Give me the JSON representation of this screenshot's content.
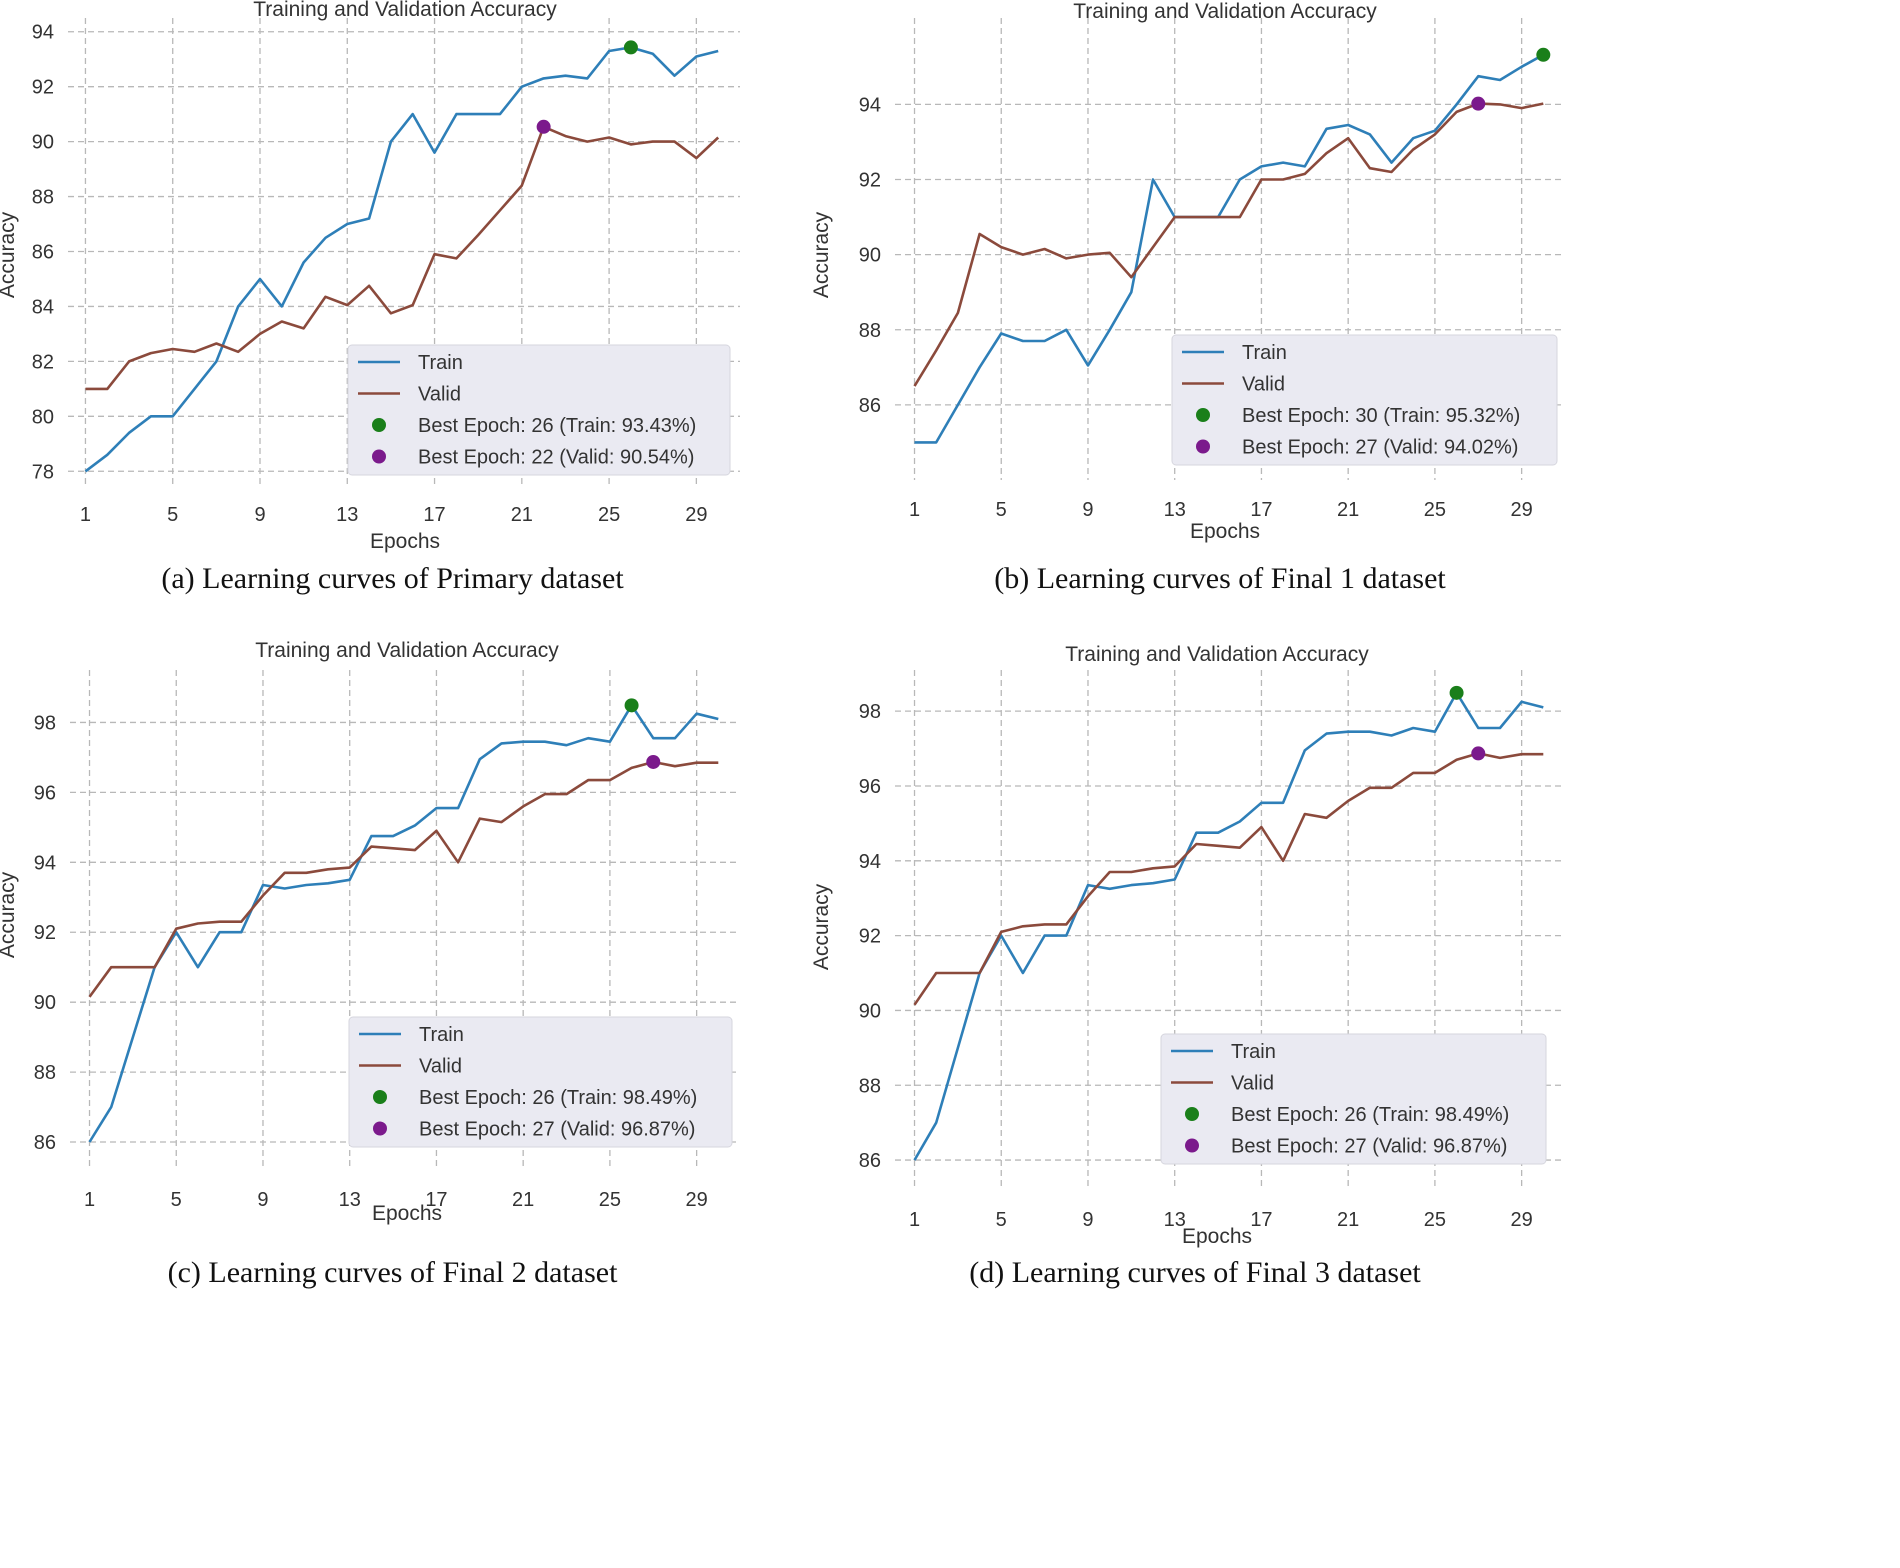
{
  "figure": {
    "captions": [
      "(a) Learning curves of Primary dataset",
      "(b) Learning curves of Final 1 dataset",
      "(c) Learning curves of Final 2 dataset",
      "(d) Learning curves of Final 3 dataset"
    ]
  },
  "colors": {
    "train": "#2e7fb8",
    "valid": "#8b4a3c",
    "best_train_marker": "#1a7f1a",
    "best_valid_marker": "#7b1a8c",
    "grid": "#b8b8b8",
    "legend_bg": "#eaeaf2"
  },
  "chart_data": [
    {
      "type": "line",
      "title": "Training and Validation Accuracy",
      "xlabel": "Epochs",
      "ylabel": "Accuracy",
      "x": [
        1,
        2,
        3,
        4,
        5,
        6,
        7,
        8,
        9,
        10,
        11,
        12,
        13,
        14,
        15,
        16,
        17,
        18,
        19,
        20,
        21,
        22,
        23,
        24,
        25,
        26,
        27,
        28,
        29,
        30
      ],
      "xticks": [
        1,
        5,
        9,
        13,
        17,
        21,
        25,
        29
      ],
      "yticks": [
        78,
        80,
        82,
        84,
        86,
        88,
        90,
        92,
        94
      ],
      "xlim": [
        0.2,
        31
      ],
      "ylim": [
        77.5,
        94.5
      ],
      "legend_position": "lower-right",
      "series": [
        {
          "name": "Train",
          "values": [
            78.0,
            78.6,
            79.4,
            80.0,
            80.0,
            81.0,
            82.0,
            84.0,
            85.0,
            84.0,
            85.6,
            86.5,
            87.0,
            87.2,
            90.0,
            91.0,
            89.6,
            91.0,
            91.0,
            91.0,
            92.0,
            92.3,
            92.4,
            92.3,
            93.3,
            93.43,
            93.2,
            92.4,
            93.1,
            93.3
          ]
        },
        {
          "name": "Valid",
          "values": [
            81.0,
            81.0,
            82.0,
            82.3,
            82.45,
            82.35,
            82.65,
            82.35,
            83.0,
            83.45,
            83.2,
            84.35,
            84.05,
            84.75,
            83.75,
            84.05,
            85.9,
            85.75,
            86.6,
            87.5,
            88.4,
            90.54,
            90.2,
            90.0,
            90.15,
            89.9,
            90.0,
            90.0,
            89.4,
            90.15
          ]
        }
      ],
      "best_train": {
        "epoch": 26,
        "value": 93.43
      },
      "best_valid": {
        "epoch": 22,
        "value": 90.54
      },
      "legend": [
        "Train",
        "Valid",
        "Best Epoch: 26 (Train: 93.43%)",
        "Best Epoch: 22 (Valid: 90.54%)"
      ]
    },
    {
      "type": "line",
      "title": "Training and Validation Accuracy",
      "xlabel": "Epochs",
      "ylabel": "Accuracy",
      "x": [
        1,
        2,
        3,
        4,
        5,
        6,
        7,
        8,
        9,
        10,
        11,
        12,
        13,
        14,
        15,
        16,
        17,
        18,
        19,
        20,
        21,
        22,
        23,
        24,
        25,
        26,
        27,
        28,
        29,
        30
      ],
      "xticks": [
        1,
        5,
        9,
        13,
        17,
        21,
        25,
        29
      ],
      "yticks": [
        86,
        88,
        90,
        92,
        94
      ],
      "xlim": [
        0.1,
        31
      ],
      "ylim": [
        84.0,
        96.3
      ],
      "legend_position": "lower-right",
      "series": [
        {
          "name": "Train",
          "values": [
            85.0,
            85.0,
            86.0,
            87.0,
            87.9,
            87.7,
            87.7,
            88.0,
            87.05,
            88.0,
            89.0,
            92.0,
            91.0,
            91.0,
            91.0,
            92.0,
            92.35,
            92.45,
            92.35,
            93.35,
            93.45,
            93.2,
            92.45,
            93.1,
            93.3,
            94.0,
            94.75,
            94.65,
            95.0,
            95.32
          ]
        },
        {
          "name": "Valid",
          "values": [
            86.5,
            87.45,
            88.45,
            90.55,
            90.2,
            90.0,
            90.15,
            89.9,
            90.0,
            90.05,
            89.4,
            90.2,
            91.0,
            91.0,
            91.0,
            91.0,
            92.0,
            92.0,
            92.15,
            92.7,
            93.1,
            92.3,
            92.2,
            92.8,
            93.2,
            93.8,
            94.02,
            94.0,
            93.9,
            94.02
          ]
        }
      ],
      "best_train": {
        "epoch": 30,
        "value": 95.32
      },
      "best_valid": {
        "epoch": 27,
        "value": 94.02
      },
      "legend": [
        "Train",
        "Valid",
        "Best Epoch: 30 (Train: 95.32%)",
        "Best Epoch: 27 (Valid: 94.02%)"
      ]
    },
    {
      "type": "line",
      "title": "Training and Validation Accuracy",
      "xlabel": "Epochs",
      "ylabel": "Accuracy",
      "x": [
        1,
        2,
        3,
        4,
        5,
        6,
        7,
        8,
        9,
        10,
        11,
        12,
        13,
        14,
        15,
        16,
        17,
        18,
        19,
        20,
        21,
        22,
        23,
        24,
        25,
        26,
        27,
        28,
        29,
        30
      ],
      "xticks": [
        1,
        5,
        9,
        13,
        17,
        21,
        25,
        29
      ],
      "yticks": [
        86,
        88,
        90,
        92,
        94,
        96,
        98
      ],
      "xlim": [
        0.1,
        31
      ],
      "ylim": [
        85.2,
        99.5
      ],
      "legend_position": "lower-right",
      "series": [
        {
          "name": "Train",
          "values": [
            86.0,
            87.0,
            89.0,
            91.0,
            92.0,
            91.0,
            92.0,
            92.0,
            93.35,
            93.25,
            93.35,
            93.4,
            93.5,
            94.75,
            94.75,
            95.05,
            95.55,
            95.55,
            96.95,
            97.4,
            97.45,
            97.45,
            97.35,
            97.55,
            97.45,
            98.49,
            97.55,
            97.55,
            98.25,
            98.1
          ]
        },
        {
          "name": "Valid",
          "values": [
            90.15,
            91.0,
            91.0,
            91.0,
            92.1,
            92.25,
            92.3,
            92.3,
            93.05,
            93.7,
            93.7,
            93.8,
            93.85,
            94.45,
            94.4,
            94.35,
            94.9,
            94.0,
            95.25,
            95.15,
            95.6,
            95.95,
            95.95,
            96.35,
            96.35,
            96.7,
            96.87,
            96.75,
            96.85,
            96.85
          ]
        }
      ],
      "best_train": {
        "epoch": 26,
        "value": 98.49
      },
      "best_valid": {
        "epoch": 27,
        "value": 96.87
      },
      "legend": [
        "Train",
        "Valid",
        "Best Epoch: 26 (Train: 98.49%)",
        "Best Epoch: 27 (Valid: 96.87%)"
      ]
    },
    {
      "type": "line",
      "title": "Training and Validation Accuracy",
      "xlabel": "Epochs",
      "ylabel": "Accuracy",
      "x": [
        1,
        2,
        3,
        4,
        5,
        6,
        7,
        8,
        9,
        10,
        11,
        12,
        13,
        14,
        15,
        16,
        17,
        18,
        19,
        20,
        21,
        22,
        23,
        24,
        25,
        26,
        27,
        28,
        29,
        30
      ],
      "xticks": [
        1,
        5,
        9,
        13,
        17,
        21,
        25,
        29
      ],
      "yticks": [
        86,
        88,
        90,
        92,
        94,
        96,
        98
      ],
      "xlim": [
        0.1,
        31
      ],
      "ylim": [
        85.2,
        99.1
      ],
      "legend_position": "lower-right",
      "series": [
        {
          "name": "Train",
          "values": [
            86.0,
            87.0,
            89.0,
            91.0,
            92.0,
            91.0,
            92.0,
            92.0,
            93.35,
            93.25,
            93.35,
            93.4,
            93.5,
            94.75,
            94.75,
            95.05,
            95.55,
            95.55,
            96.95,
            97.4,
            97.45,
            97.45,
            97.35,
            97.55,
            97.45,
            98.49,
            97.55,
            97.55,
            98.25,
            98.1
          ]
        },
        {
          "name": "Valid",
          "values": [
            90.15,
            91.0,
            91.0,
            91.0,
            92.1,
            92.25,
            92.3,
            92.3,
            93.05,
            93.7,
            93.7,
            93.8,
            93.85,
            94.45,
            94.4,
            94.35,
            94.9,
            94.0,
            95.25,
            95.15,
            95.6,
            95.95,
            95.95,
            96.35,
            96.35,
            96.7,
            96.87,
            96.75,
            96.85,
            96.85
          ]
        }
      ],
      "best_train": {
        "epoch": 26,
        "value": 98.49
      },
      "best_valid": {
        "epoch": 27,
        "value": 96.87
      },
      "legend": [
        "Train",
        "Valid",
        "Best Epoch: 26 (Train: 98.49%)",
        "Best Epoch: 27 (Valid: 96.87%)"
      ]
    }
  ]
}
